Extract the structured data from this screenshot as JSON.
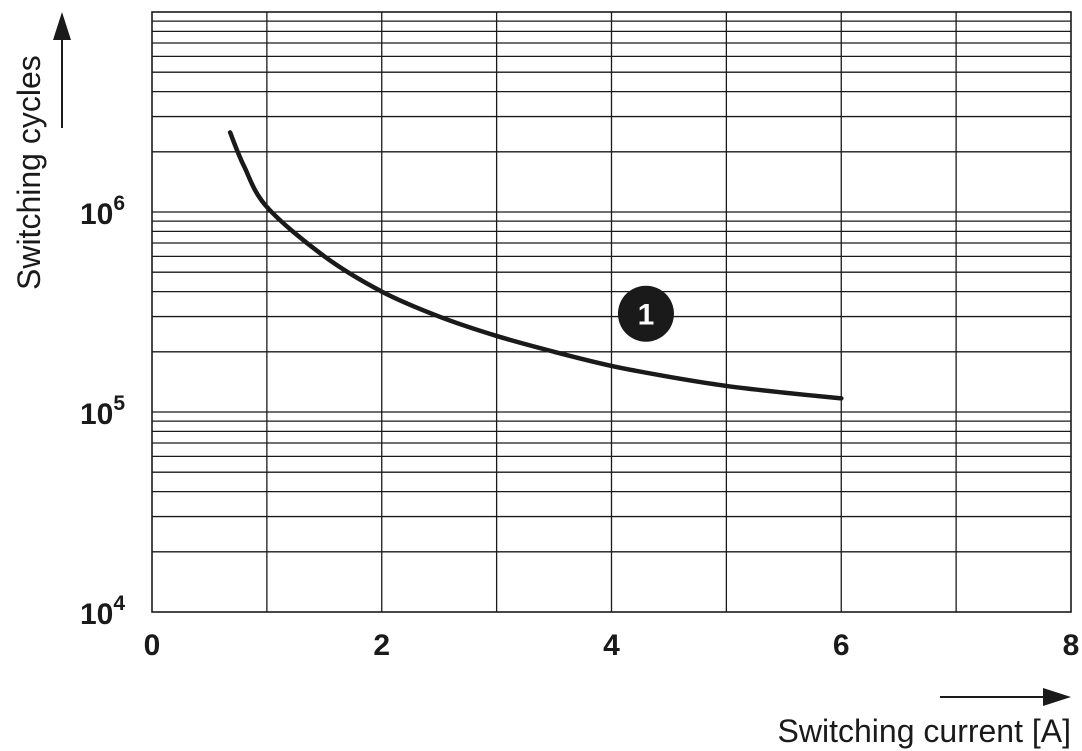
{
  "chart_data": {
    "type": "line",
    "xlabel": "Switching current [A]",
    "ylabel": "Switching cycles",
    "x_ticks": [
      "0",
      "2",
      "4",
      "6",
      "8"
    ],
    "y_ticks": [
      {
        "base": "10",
        "exp": "4",
        "value": 10000
      },
      {
        "base": "10",
        "exp": "5",
        "value": 100000
      },
      {
        "base": "10",
        "exp": "6",
        "value": 1000000
      }
    ],
    "xlim": [
      0,
      8
    ],
    "ylim": [
      10000,
      10000000
    ],
    "y_scale": "log",
    "grid": true,
    "series": [
      {
        "marker": "1",
        "marker_at": [
          4.3,
          310000
        ],
        "x": [
          0.68,
          0.8,
          1.0,
          1.5,
          2.0,
          2.5,
          3.0,
          3.5,
          4.0,
          4.5,
          5.0,
          5.5,
          6.0
        ],
        "y": [
          2500000,
          1700000,
          1060000,
          600000,
          400000,
          300000,
          240000,
          200000,
          170000,
          150000,
          135000,
          125000,
          117000
        ]
      }
    ]
  }
}
